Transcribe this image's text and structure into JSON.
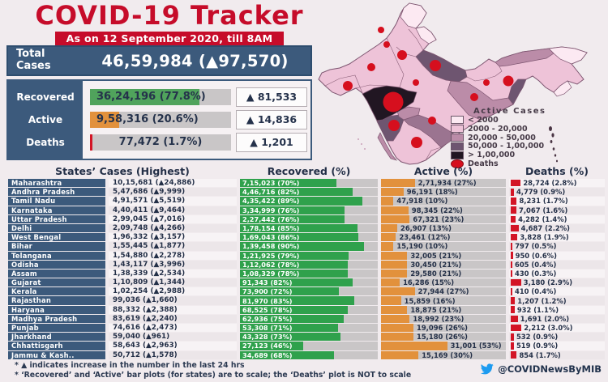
{
  "header": {
    "title": "COVID-19 Tracker",
    "subtitle": "As on 12 September 2020, till 8AM"
  },
  "summary": {
    "total_label": "Total Cases",
    "total_value": "46,59,984 (▲97,570)",
    "rows": [
      {
        "label": "Recovered",
        "value": "36,24,196 (77.8%)",
        "pct": 77.8,
        "delta": "▲ 81,533",
        "color": "#50a35c"
      },
      {
        "label": "Active",
        "value": "9,58,316 (20.6%)",
        "pct": 20.6,
        "delta": "▲ 14,836",
        "color": "#e2913c"
      },
      {
        "label": "Deaths",
        "value": "77,472 (1.7%)",
        "pct": 1.7,
        "delta": "▲ 1,201",
        "color": "#d31526"
      }
    ]
  },
  "map": {
    "legend_title": "Active Cases",
    "legend": [
      {
        "label": "< 2000",
        "color": "#fce9f2",
        "shape": "rect"
      },
      {
        "label": "2000 - 20,000",
        "color": "#eec3d8",
        "shape": "rect"
      },
      {
        "label": "20,000 - 50,000",
        "color": "#bb8ca8",
        "shape": "rect"
      },
      {
        "label": "50,000 - 1,00,000",
        "color": "#6e5570",
        "shape": "rect"
      },
      {
        "label": "> 1,00,000",
        "color": "#211622",
        "shape": "rect"
      },
      {
        "label": "Deaths",
        "color": "#d60f1e",
        "shape": "ellipse"
      }
    ]
  },
  "table": {
    "headers": {
      "states": "States’ Cases (Highest)",
      "recovered": "Recovered (%)",
      "active": "Active (%)",
      "deaths": "Deaths (%)"
    },
    "rows": [
      {
        "state": "Maharashtra",
        "cases": "10,15,681 (▲24,886)",
        "recovered": "7,15,023 (70%)",
        "recovered_pct": 70,
        "active": "2,71,934 (27%)",
        "active_pct": 27,
        "deaths": "28,724 (2.8%)",
        "deaths_pct": 2.8
      },
      {
        "state": "Andhra Pradesh",
        "cases": "5,47,686 (▲9,999)",
        "recovered": "4,46,716 (82%)",
        "recovered_pct": 82,
        "active": "96,191 (18%)",
        "active_pct": 18,
        "deaths": "4,779 (0.9%)",
        "deaths_pct": 0.9
      },
      {
        "state": "Tamil Nadu",
        "cases": "4,91,571 (▲5,519)",
        "recovered": "4,35,422 (89%)",
        "recovered_pct": 89,
        "active": "47,918 (10%)",
        "active_pct": 10,
        "deaths": "8,231 (1.7%)",
        "deaths_pct": 1.7
      },
      {
        "state": "Karnataka",
        "cases": "4,40,411 (▲9,464)",
        "recovered": "3,34,999 (76%)",
        "recovered_pct": 76,
        "active": "98,345 (22%)",
        "active_pct": 22,
        "deaths": "7,067 (1.6%)",
        "deaths_pct": 1.6
      },
      {
        "state": "Uttar Pradesh",
        "cases": "2,99,045 (▲7,016)",
        "recovered": "2,27,442 (76%)",
        "recovered_pct": 76,
        "active": "67,321 (23%)",
        "active_pct": 23,
        "deaths": "4,282 (1.4%)",
        "deaths_pct": 1.4
      },
      {
        "state": "Delhi",
        "cases": "2,09,748 (▲4,266)",
        "recovered": "1,78,154 (85%)",
        "recovered_pct": 85,
        "active": "26,907 (13%)",
        "active_pct": 13,
        "deaths": "4,687 (2.2%)",
        "deaths_pct": 2.2
      },
      {
        "state": "West Bengal",
        "cases": "1,96,332 (▲3,157)",
        "recovered": "1,69,043 (86%)",
        "recovered_pct": 86,
        "active": "23,461 (12%)",
        "active_pct": 12,
        "deaths": "3,828 (1.9%)",
        "deaths_pct": 1.9
      },
      {
        "state": "Bihar",
        "cases": "1,55,445 (▲1,877)",
        "recovered": "1,39,458 (90%)",
        "recovered_pct": 90,
        "active": "15,190 (10%)",
        "active_pct": 10,
        "deaths": "797 (0.5%)",
        "deaths_pct": 0.5
      },
      {
        "state": "Telangana",
        "cases": "1,54,880 (▲2,278)",
        "recovered": "1,21,925 (79%)",
        "recovered_pct": 79,
        "active": "32,005 (21%)",
        "active_pct": 21,
        "deaths": "950 (0.6%)",
        "deaths_pct": 0.6
      },
      {
        "state": "Odisha",
        "cases": "1,43,117 (▲3,996)",
        "recovered": "1,12,062 (78%)",
        "recovered_pct": 78,
        "active": "30,450 (21%)",
        "active_pct": 21,
        "deaths": "605 (0.4%)",
        "deaths_pct": 0.4
      },
      {
        "state": "Assam",
        "cases": "1,38,339 (▲2,534)",
        "recovered": "1,08,329 (78%)",
        "recovered_pct": 78,
        "active": "29,580 (21%)",
        "active_pct": 21,
        "deaths": "430 (0.3%)",
        "deaths_pct": 0.3
      },
      {
        "state": "Gujarat",
        "cases": "1,10,809 (▲1,344)",
        "recovered": "91,343 (82%)",
        "recovered_pct": 82,
        "active": "16,286 (15%)",
        "active_pct": 15,
        "deaths": "3,180 (2.9%)",
        "deaths_pct": 2.9
      },
      {
        "state": "Kerala",
        "cases": "1,02,254 (▲2,988)",
        "recovered": "73,900 (72%)",
        "recovered_pct": 72,
        "active": "27,944 (27%)",
        "active_pct": 27,
        "deaths": "410 (0.4%)",
        "deaths_pct": 0.4
      },
      {
        "state": "Rajasthan",
        "cases": "99,036 (▲1,660)",
        "recovered": "81,970 (83%)",
        "recovered_pct": 83,
        "active": "15,859 (16%)",
        "active_pct": 16,
        "deaths": "1,207 (1.2%)",
        "deaths_pct": 1.2
      },
      {
        "state": "Haryana",
        "cases": "88,332 (▲2,388)",
        "recovered": "68,525 (78%)",
        "recovered_pct": 78,
        "active": "18,875 (21%)",
        "active_pct": 21,
        "deaths": "932 (1.1%)",
        "deaths_pct": 1.1
      },
      {
        "state": "Madhya Pradesh",
        "cases": "83,619 (▲2,240)",
        "recovered": "62,936 (75%)",
        "recovered_pct": 75,
        "active": "18,992 (23%)",
        "active_pct": 23,
        "deaths": "1,691 (2.0%)",
        "deaths_pct": 2.0
      },
      {
        "state": "Punjab",
        "cases": "74,616 (▲2,473)",
        "recovered": "53,308 (71%)",
        "recovered_pct": 71,
        "active": "19,096 (26%)",
        "active_pct": 26,
        "deaths": "2,212 (3.0%)",
        "deaths_pct": 3.0
      },
      {
        "state": "Jharkhand",
        "cases": "59,040 (▲961)",
        "recovered": "43,328 (73%)",
        "recovered_pct": 73,
        "active": "15,180 (26%)",
        "active_pct": 26,
        "deaths": "532 (0.9%)",
        "deaths_pct": 0.9
      },
      {
        "state": "Chhattisgarh",
        "cases": "58,643 (▲2,963)",
        "recovered": "27,123 (46%)",
        "recovered_pct": 46,
        "active": "31,001 (53%)",
        "active_pct": 53,
        "deaths": "519 (0.9%)",
        "deaths_pct": 0.9
      },
      {
        "state": "Jammu & Kash..",
        "cases": "50,712 (▲1,578)",
        "recovered": "34,689 (68%)",
        "recovered_pct": 68,
        "active": "15,169 (30%)",
        "active_pct": 30,
        "deaths": "854 (1.7%)",
        "deaths_pct": 1.7
      }
    ]
  },
  "footer": {
    "note1": "* ▲ indicates increase in the number in the last 24 hrs",
    "note2": "* ‘Recovered’ and ‘Active’ bar plots (for states) are to scale; the ‘Deaths’ plot is NOT to scale",
    "handle": "@COVIDNewsByMIB",
    "twitter_blue": "#1d9bf0"
  },
  "chart_data": [
    {
      "type": "bar",
      "title": "COVID-19 Tracker — India totals as on 12 September 2020, till 8AM",
      "categories": [
        "Recovered",
        "Active",
        "Deaths"
      ],
      "values": [
        3624196,
        958316,
        77472
      ],
      "percent_of_total": [
        77.8,
        20.6,
        1.7
      ],
      "daily_increase": [
        81533,
        14836,
        1201
      ],
      "total_cases": 4659984,
      "total_daily_increase": 97570,
      "colors": {
        "recovered": "#2fa14c",
        "active": "#e2913c",
        "deaths": "#d31526"
      },
      "xlim": [
        0,
        100
      ]
    },
    {
      "type": "table",
      "title": "States’ Cases (Highest)",
      "columns": [
        "State",
        "Cases",
        "New cases (24h)",
        "Recovered",
        "Recovered %",
        "Active",
        "Active %",
        "Deaths",
        "Deaths %"
      ],
      "rows": [
        [
          "Maharashtra",
          1015681,
          24886,
          715023,
          70,
          271934,
          27,
          28724,
          2.8
        ],
        [
          "Andhra Pradesh",
          547686,
          9999,
          446716,
          82,
          96191,
          18,
          4779,
          0.9
        ],
        [
          "Tamil Nadu",
          491571,
          5519,
          435422,
          89,
          47918,
          10,
          8231,
          1.7
        ],
        [
          "Karnataka",
          440411,
          9464,
          334999,
          76,
          98345,
          22,
          7067,
          1.6
        ],
        [
          "Uttar Pradesh",
          299045,
          7016,
          227442,
          76,
          67321,
          23,
          4282,
          1.4
        ],
        [
          "Delhi",
          209748,
          4266,
          178154,
          85,
          26907,
          13,
          4687,
          2.2
        ],
        [
          "West Bengal",
          196332,
          3157,
          169043,
          86,
          23461,
          12,
          3828,
          1.9
        ],
        [
          "Bihar",
          155445,
          1877,
          139458,
          90,
          15190,
          10,
          797,
          0.5
        ],
        [
          "Telangana",
          154880,
          2278,
          121925,
          79,
          32005,
          21,
          950,
          0.6
        ],
        [
          "Odisha",
          143117,
          3996,
          112062,
          78,
          30450,
          21,
          605,
          0.4
        ],
        [
          "Assam",
          138339,
          2534,
          108329,
          78,
          29580,
          21,
          430,
          0.3
        ],
        [
          "Gujarat",
          110809,
          1344,
          91343,
          82,
          16286,
          15,
          3180,
          2.9
        ],
        [
          "Kerala",
          102254,
          2988,
          73900,
          72,
          27944,
          27,
          410,
          0.4
        ],
        [
          "Rajasthan",
          99036,
          1660,
          81970,
          83,
          15859,
          16,
          1207,
          1.2
        ],
        [
          "Haryana",
          88332,
          2388,
          68525,
          78,
          18875,
          21,
          932,
          1.1
        ],
        [
          "Madhya Pradesh",
          83619,
          2240,
          62936,
          75,
          18992,
          23,
          1691,
          2.0
        ],
        [
          "Punjab",
          74616,
          2473,
          53308,
          71,
          19096,
          26,
          2212,
          3.0
        ],
        [
          "Jharkhand",
          59040,
          961,
          43328,
          73,
          15180,
          26,
          532,
          0.9
        ],
        [
          "Chhattisgarh",
          58643,
          2963,
          27123,
          46,
          31001,
          53,
          519,
          0.9
        ],
        [
          "Jammu & Kash..",
          50712,
          1578,
          34689,
          68,
          15169,
          30,
          854,
          1.7
        ]
      ],
      "legend": [
        "< 2000",
        "2000 - 20,000",
        "20,000 - 50,000",
        "50,000 - 1,00,000",
        "> 1,00,000",
        "Deaths"
      ],
      "legend_title": "Active Cases",
      "legend_position": "map-right"
    }
  ]
}
